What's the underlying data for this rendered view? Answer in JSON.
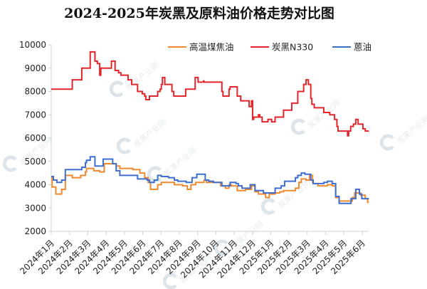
{
  "chart_data": {
    "type": "line",
    "title": "2024-2025年炭黑及原料油价格走势对比图",
    "xlabel": "",
    "ylabel": "",
    "ylim": [
      2000,
      10000
    ],
    "yticks": [
      "2000",
      "3000",
      "4000",
      "5000",
      "6000",
      "7000",
      "8000",
      "9000",
      "10000"
    ],
    "x_unit": "months since 2024-01 (step series)",
    "xlim": [
      0,
      17.37
    ],
    "categories": [
      "2024年1月",
      "2024年2月",
      "2024年3月",
      "2024年4月",
      "2024年5月",
      "2024年6月",
      "2024年7月",
      "2024年8月",
      "2024年9月",
      "2024年10月",
      "2024年11月",
      "2024年12月",
      "2025年1月",
      "2025年2月",
      "2025年3月",
      "2025年4月",
      "2025年5月",
      "2025年6月"
    ],
    "legend_position": "top-right",
    "grid": false,
    "watermark": "炭黑产业网",
    "series": [
      {
        "name": "高温煤焦油",
        "color": "#F08A30",
        "points": [
          [
            0,
            4300
          ],
          [
            0.05,
            3900
          ],
          [
            0.25,
            3600
          ],
          [
            0.57,
            3800
          ],
          [
            0.77,
            4400
          ],
          [
            1.15,
            4300
          ],
          [
            1.61,
            4400
          ],
          [
            1.87,
            4550
          ],
          [
            1.93,
            4700
          ],
          [
            2.32,
            4600
          ],
          [
            2.65,
            4550
          ],
          [
            2.9,
            4900
          ],
          [
            3.55,
            4800
          ],
          [
            3.75,
            4700
          ],
          [
            4.46,
            4650
          ],
          [
            4.85,
            4500
          ],
          [
            5.11,
            4300
          ],
          [
            5.3,
            4100
          ],
          [
            5.43,
            3800
          ],
          [
            5.82,
            4000
          ],
          [
            6.02,
            4100
          ],
          [
            6.73,
            4000
          ],
          [
            7.18,
            3950
          ],
          [
            7.44,
            3800
          ],
          [
            7.64,
            4000
          ],
          [
            7.9,
            4100
          ],
          [
            8.35,
            4200
          ],
          [
            8.48,
            4100
          ],
          [
            9.26,
            3950
          ],
          [
            9.52,
            3850
          ],
          [
            9.72,
            4000
          ],
          [
            9.84,
            3950
          ],
          [
            10.17,
            3750
          ],
          [
            10.62,
            3800
          ],
          [
            10.95,
            3950
          ],
          [
            11.14,
            3700
          ],
          [
            11.33,
            3600
          ],
          [
            11.72,
            3450
          ],
          [
            11.92,
            3600
          ],
          [
            12.24,
            3650
          ],
          [
            12.5,
            3700
          ],
          [
            12.7,
            3750
          ],
          [
            13.35,
            3850
          ],
          [
            13.54,
            4100
          ],
          [
            13.67,
            4250
          ],
          [
            13.93,
            4200
          ],
          [
            14.12,
            4400
          ],
          [
            14.29,
            4100
          ],
          [
            14.32,
            4050
          ],
          [
            14.58,
            3950
          ],
          [
            15.1,
            4000
          ],
          [
            15.36,
            3950
          ],
          [
            15.55,
            3450
          ],
          [
            15.74,
            3300
          ],
          [
            16.46,
            3450
          ],
          [
            16.59,
            3650
          ],
          [
            16.91,
            3550
          ],
          [
            17.17,
            3400
          ],
          [
            17.3,
            3250
          ]
        ]
      },
      {
        "name": "炭黑N330",
        "color": "#E3262B",
        "points": [
          [
            0,
            8100
          ],
          [
            1.15,
            8500
          ],
          [
            1.67,
            9000
          ],
          [
            2.13,
            9700
          ],
          [
            2.39,
            9300
          ],
          [
            2.52,
            9200
          ],
          [
            2.65,
            8700
          ],
          [
            2.71,
            9000
          ],
          [
            3.29,
            9300
          ],
          [
            3.49,
            8900
          ],
          [
            3.68,
            8800
          ],
          [
            3.81,
            8700
          ],
          [
            4.2,
            8500
          ],
          [
            4.4,
            8300
          ],
          [
            4.72,
            8000
          ],
          [
            4.98,
            7900
          ],
          [
            5.11,
            7800
          ],
          [
            5.17,
            7650
          ],
          [
            5.37,
            7800
          ],
          [
            5.82,
            8000
          ],
          [
            5.95,
            8100
          ],
          [
            6.02,
            8300
          ],
          [
            6.08,
            8600
          ],
          [
            6.21,
            8300
          ],
          [
            6.6,
            8000
          ],
          [
            6.7,
            7800
          ],
          [
            7.35,
            8100
          ],
          [
            7.87,
            8600
          ],
          [
            8.03,
            8400
          ],
          [
            8.33,
            8450
          ],
          [
            8.35,
            8400
          ],
          [
            9.33,
            8000
          ],
          [
            9.39,
            7800
          ],
          [
            9.72,
            8100
          ],
          [
            9.78,
            8200
          ],
          [
            10.17,
            7800
          ],
          [
            10.36,
            7600
          ],
          [
            10.82,
            7350
          ],
          [
            10.95,
            7600
          ],
          [
            11.01,
            6800
          ],
          [
            11.07,
            6900
          ],
          [
            11.33,
            7000
          ],
          [
            11.4,
            6900
          ],
          [
            11.53,
            6700
          ],
          [
            11.85,
            6800
          ],
          [
            12.05,
            6700
          ],
          [
            12.24,
            6900
          ],
          [
            12.7,
            7200
          ],
          [
            13.15,
            7500
          ],
          [
            13.48,
            8000
          ],
          [
            13.8,
            8300
          ],
          [
            13.93,
            8500
          ],
          [
            14.06,
            8300
          ],
          [
            14.19,
            7700
          ],
          [
            14.25,
            7450
          ],
          [
            14.38,
            7300
          ],
          [
            14.9,
            7100
          ],
          [
            15.23,
            7000
          ],
          [
            15.49,
            6800
          ],
          [
            15.62,
            6500
          ],
          [
            15.68,
            6300
          ],
          [
            16.2,
            6100
          ],
          [
            16.26,
            6300
          ],
          [
            16.37,
            6500
          ],
          [
            16.52,
            6600
          ],
          [
            16.65,
            6800
          ],
          [
            16.78,
            6600
          ],
          [
            17.04,
            6400
          ],
          [
            17.17,
            6300
          ]
        ]
      },
      {
        "name": "蒽油",
        "color": "#3E6FD0",
        "points": [
          [
            0,
            4350
          ],
          [
            0.12,
            4200
          ],
          [
            0.31,
            4100
          ],
          [
            0.57,
            4200
          ],
          [
            0.77,
            4650
          ],
          [
            1.67,
            4750
          ],
          [
            1.87,
            4950
          ],
          [
            1.93,
            5050
          ],
          [
            2.13,
            5200
          ],
          [
            2.39,
            4800
          ],
          [
            2.84,
            5100
          ],
          [
            3.36,
            4900
          ],
          [
            3.55,
            4600
          ],
          [
            3.75,
            4400
          ],
          [
            4.72,
            4250
          ],
          [
            5.24,
            4200
          ],
          [
            5.37,
            4100
          ],
          [
            5.63,
            4200
          ],
          [
            5.82,
            4400
          ],
          [
            6.02,
            4350
          ],
          [
            6.41,
            4300
          ],
          [
            6.73,
            4200
          ],
          [
            6.92,
            4150
          ],
          [
            7.38,
            4100
          ],
          [
            7.7,
            4300
          ],
          [
            7.96,
            4450
          ],
          [
            8.42,
            4200
          ],
          [
            8.61,
            4150
          ],
          [
            8.87,
            4100
          ],
          [
            9.33,
            3950
          ],
          [
            9.78,
            4100
          ],
          [
            10.1,
            4050
          ],
          [
            10.23,
            3950
          ],
          [
            10.43,
            3850
          ],
          [
            10.88,
            4000
          ],
          [
            11.14,
            3750
          ],
          [
            11.6,
            3650
          ],
          [
            12.24,
            3850
          ],
          [
            12.57,
            3950
          ],
          [
            12.76,
            4150
          ],
          [
            13.35,
            4300
          ],
          [
            13.48,
            4400
          ],
          [
            13.67,
            4500
          ],
          [
            13.87,
            4450
          ],
          [
            14.19,
            4200
          ],
          [
            14.32,
            4050
          ],
          [
            14.9,
            4100
          ],
          [
            15.1,
            4150
          ],
          [
            15.36,
            4050
          ],
          [
            15.55,
            3500
          ],
          [
            15.74,
            3200
          ],
          [
            16.39,
            3400
          ],
          [
            16.65,
            3800
          ],
          [
            16.85,
            3600
          ],
          [
            16.98,
            3400
          ]
        ]
      }
    ]
  }
}
